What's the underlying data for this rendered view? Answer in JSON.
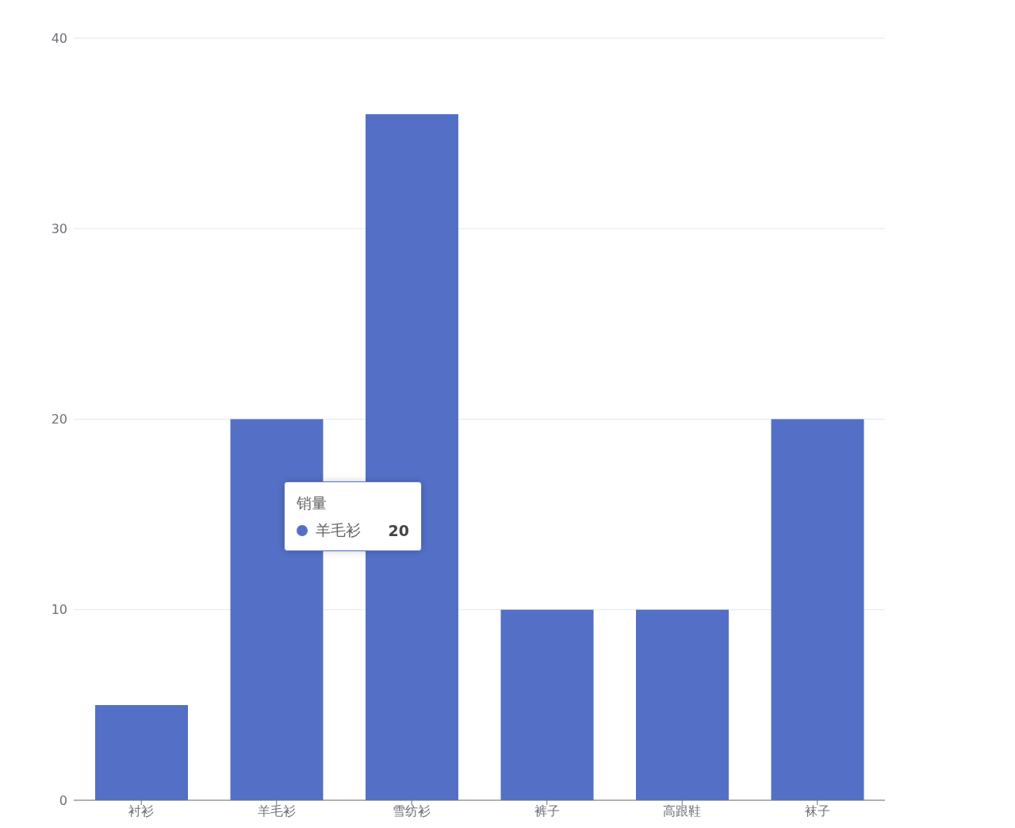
{
  "chart_data": {
    "type": "bar",
    "categories": [
      "衬衫",
      "羊毛衫",
      "雪纺衫",
      "裤子",
      "高跟鞋",
      "袜子"
    ],
    "series": [
      {
        "name": "销量",
        "color": "#5470c6",
        "values": [
          5,
          20,
          36,
          10,
          10,
          20
        ]
      }
    ],
    "ylim": [
      0,
      40
    ],
    "yticks": [
      0,
      10,
      20,
      30,
      40
    ],
    "grid": "y",
    "legend": false,
    "annotations": [
      "羊毛衫",
      "20"
    ]
  }
}
